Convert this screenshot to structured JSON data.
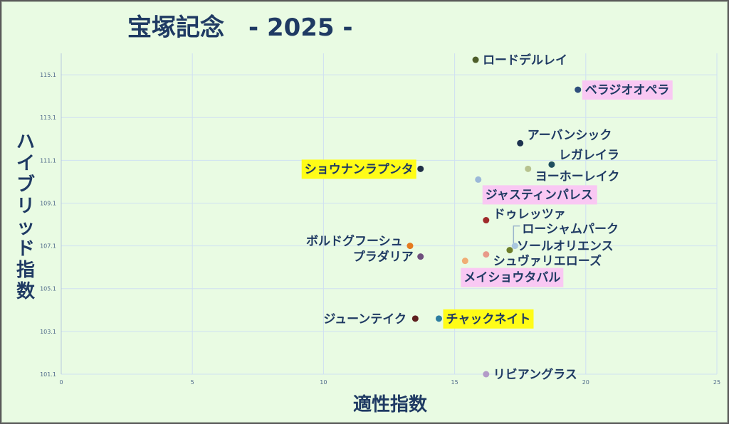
{
  "chart_data": {
    "type": "scatter",
    "title": "宝塚記念　- 2025 -",
    "xlabel": "適性指数",
    "ylabel": "ハイブリッド指数",
    "xlim": [
      0,
      25
    ],
    "ylim": [
      101.1,
      116.1
    ],
    "x_ticks": [
      "0",
      "5",
      "10",
      "15",
      "20",
      "25"
    ],
    "y_ticks": [
      "101.1",
      "103.1",
      "105.1",
      "107.1",
      "109.1",
      "111.1",
      "113.1",
      "115.1"
    ],
    "grid": true,
    "points": [
      {
        "name": "ロードデルレイ",
        "x": 15.8,
        "y": 115.8,
        "color": "#4e5e2a",
        "highlight": "none"
      },
      {
        "name": "ベラジオオペラ",
        "x": 19.7,
        "y": 114.4,
        "color": "#2e4f7c",
        "highlight": "pink"
      },
      {
        "name": "アーバンシック",
        "x": 17.5,
        "y": 111.9,
        "color": "#1e3350",
        "highlight": "none"
      },
      {
        "name": "レガレイラ",
        "x": 18.7,
        "y": 110.9,
        "color": "#1f4e5f",
        "highlight": "none"
      },
      {
        "name": "ヨーホーレイク",
        "x": 17.8,
        "y": 110.7,
        "color": "#b7c28e",
        "highlight": "none"
      },
      {
        "name": "ショウナンラプンタ",
        "x": 13.7,
        "y": 110.7,
        "color": "#1f2f47",
        "highlight": "yellow"
      },
      {
        "name": "ジャスティンパレス",
        "x": 15.9,
        "y": 110.2,
        "color": "#9bb8d8",
        "highlight": "pink"
      },
      {
        "name": "ドゥレッツァ",
        "x": 16.2,
        "y": 108.3,
        "color": "#9e2a2a",
        "highlight": "none"
      },
      {
        "name": "ローシャムパーク",
        "x": 17.3,
        "y": 107.1,
        "color": "#a9c7df",
        "highlight": "none"
      },
      {
        "name": "ソールオリエンス",
        "x": 17.1,
        "y": 106.9,
        "color": "#6e7f2a",
        "highlight": "none"
      },
      {
        "name": "ボルドグフーシュ",
        "x": 13.3,
        "y": 107.1,
        "color": "#e57a1f",
        "highlight": "none"
      },
      {
        "name": "プラダリア",
        "x": 13.7,
        "y": 106.6,
        "color": "#6f4f7e",
        "highlight": "none"
      },
      {
        "name": "シュヴァリエローズ",
        "x": 16.2,
        "y": 106.7,
        "color": "#e89a8a",
        "highlight": "none"
      },
      {
        "name": "メイショウタバル",
        "x": 15.4,
        "y": 106.4,
        "color": "#f0ad74",
        "highlight": "pink"
      },
      {
        "name": "ジューンテイク",
        "x": 13.5,
        "y": 103.7,
        "color": "#5e1f1f",
        "highlight": "none"
      },
      {
        "name": "チャックネイト",
        "x": 14.4,
        "y": 103.7,
        "color": "#2c7da0",
        "highlight": "yellow"
      },
      {
        "name": "リビアングラス",
        "x": 16.2,
        "y": 101.1,
        "color": "#b39bc8",
        "highlight": "none"
      }
    ]
  }
}
